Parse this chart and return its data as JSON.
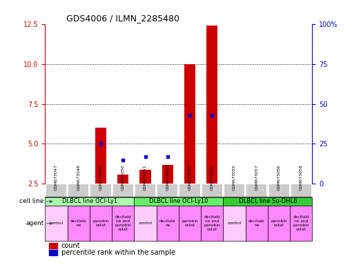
{
  "title": "GDS4006 / ILMN_2285480",
  "samples": [
    "GSM673047",
    "GSM673048",
    "GSM673049",
    "GSM673050",
    "GSM673051",
    "GSM673052",
    "GSM673053",
    "GSM673054",
    "GSM673055",
    "GSM673057",
    "GSM673056",
    "GSM673058"
  ],
  "count_values": [
    null,
    null,
    6.0,
    3.1,
    3.4,
    3.7,
    10.0,
    12.4,
    null,
    null,
    null,
    null
  ],
  "percentile_values": [
    null,
    null,
    25.0,
    15.0,
    17.0,
    17.0,
    43.0,
    43.0,
    null,
    null,
    null,
    null
  ],
  "ylim_left": [
    2.5,
    12.5
  ],
  "ylim_right": [
    0,
    100
  ],
  "yticks_left": [
    2.5,
    5.0,
    7.5,
    10.0,
    12.5
  ],
  "yticks_right": [
    0,
    25,
    50,
    75,
    100
  ],
  "cell_line_groups": [
    {
      "label": "DLBCL line OCI-Ly1",
      "start": 0,
      "end": 3,
      "color": "#aaffaa"
    },
    {
      "label": "DLBCL line OCI-Ly10",
      "start": 4,
      "end": 7,
      "color": "#66ee66"
    },
    {
      "label": "DLBCL line Su-DHL6",
      "start": 8,
      "end": 11,
      "color": "#33cc33"
    }
  ],
  "agent_labels": [
    "control",
    "decitabi\nne",
    "panobin\nostat",
    "decitabi\nne and\npanobin\nostat",
    "control",
    "decitabi\nne",
    "panobin\nostat",
    "decitabi\nne and\npanobin\nostat",
    "control",
    "decitabi\nne",
    "panobin\nostat",
    "decitabi\nne and\npanobin\nostat"
  ],
  "bar_color": "#cc0000",
  "dot_color": "#0000cc",
  "tick_bg_color": "#cccccc",
  "left_axis_color": "#cc0000",
  "right_axis_color": "#0000cc",
  "grid_color": "#000000",
  "grid_yticks": [
    5.0,
    7.5,
    10.0
  ],
  "cell_line_colors": [
    "#aaffaa",
    "#66ee66",
    "#33cc33"
  ],
  "agent_bg_color": "#ff88ff",
  "control_bg_color": "#ffccff",
  "left_label_color": "#333333"
}
